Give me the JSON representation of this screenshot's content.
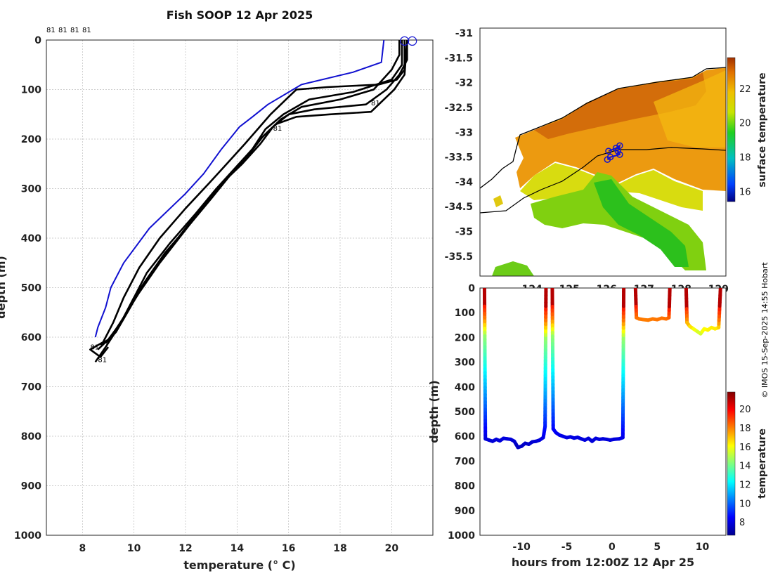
{
  "title": "Fish SOOP 12 Apr 2025",
  "credit": "© IMOS 15-Sep-2025 14:55 Hobart",
  "colors": {
    "latest_profile": "#1010d0",
    "profiles": "#000000",
    "coast": "#000000"
  },
  "icons": {
    "position_marker": "circle-marker",
    "track_marker": "circle-marker"
  },
  "chart_data": [
    {
      "name": "profiles",
      "type": "line",
      "xlabel": "temperature (° C)",
      "ylabel": "depth (m)",
      "xlim": [
        6.6,
        21.6
      ],
      "ylim": [
        1000,
        0
      ],
      "xticks": [
        8,
        10,
        12,
        14,
        16,
        18,
        20
      ],
      "yticks": [
        0,
        100,
        200,
        300,
        400,
        500,
        600,
        700,
        800,
        900,
        1000
      ],
      "grid": true,
      "top_labels": [
        "81",
        "81",
        "81",
        "81"
      ],
      "series": [
        {
          "name": "latest",
          "color": "#1010d0",
          "points": [
            [
              19.7,
              0
            ],
            [
              19.6,
              45
            ],
            [
              18.5,
              65
            ],
            [
              16.5,
              90
            ],
            [
              15.2,
              130
            ],
            [
              14.6,
              155
            ],
            [
              14.1,
              175
            ],
            [
              13.4,
              220
            ],
            [
              12.7,
              270
            ],
            [
              12.0,
              310
            ],
            [
              10.6,
              380
            ],
            [
              9.6,
              450
            ],
            [
              9.1,
              500
            ],
            [
              8.9,
              540
            ],
            [
              8.6,
              580
            ],
            [
              8.5,
              600
            ]
          ]
        },
        {
          "name": "profile-1",
          "color": "#000000",
          "points": [
            [
              20.5,
              0
            ],
            [
              20.5,
              60
            ],
            [
              20.2,
              80
            ],
            [
              19.5,
              90
            ],
            [
              17.5,
              95
            ],
            [
              16.3,
              100
            ],
            [
              15.9,
              120
            ],
            [
              15.3,
              150
            ],
            [
              14.8,
              180
            ],
            [
              14.3,
              210
            ],
            [
              13.6,
              250
            ],
            [
              12.9,
              290
            ],
            [
              12.0,
              340
            ],
            [
              11.0,
              400
            ],
            [
              10.2,
              460
            ],
            [
              9.6,
              520
            ],
            [
              9.2,
              570
            ],
            [
              8.8,
              610
            ],
            [
              8.3,
              625
            ],
            [
              8.7,
              640
            ],
            [
              9.0,
              620
            ]
          ]
        },
        {
          "name": "profile-2",
          "color": "#000000",
          "points": [
            [
              20.4,
              0
            ],
            [
              20.4,
              50
            ],
            [
              20.0,
              80
            ],
            [
              18.5,
              105
            ],
            [
              16.8,
              120
            ],
            [
              15.8,
              150
            ],
            [
              15.1,
              180
            ],
            [
              14.6,
              220
            ],
            [
              13.9,
              260
            ],
            [
              13.2,
              300
            ],
            [
              12.4,
              350
            ],
            [
              11.4,
              410
            ],
            [
              10.5,
              470
            ],
            [
              9.9,
              530
            ],
            [
              9.4,
              580
            ],
            [
              8.9,
              620
            ],
            [
              8.5,
              650
            ]
          ]
        },
        {
          "name": "profile-3",
          "color": "#000000",
          "points": [
            [
              20.6,
              0
            ],
            [
              20.6,
              40
            ],
            [
              20.3,
              70
            ],
            [
              19.8,
              100
            ],
            [
              19.0,
              130
            ],
            [
              17.0,
              140
            ],
            [
              16.0,
              150
            ],
            [
              15.4,
              175
            ],
            [
              14.9,
              210
            ],
            [
              14.2,
              250
            ],
            [
              13.4,
              290
            ],
            [
              12.6,
              340
            ],
            [
              11.7,
              400
            ],
            [
              10.8,
              460
            ],
            [
              10.0,
              520
            ],
            [
              9.5,
              570
            ],
            [
              9.0,
              605
            ],
            [
              8.7,
              615
            ]
          ]
        },
        {
          "name": "profile-4",
          "color": "#000000",
          "points": [
            [
              20.6,
              0
            ],
            [
              20.5,
              70
            ],
            [
              20.1,
              100
            ],
            [
              19.2,
              145
            ],
            [
              17.6,
              150
            ],
            [
              16.3,
              155
            ],
            [
              15.5,
              170
            ],
            [
              14.9,
              200
            ],
            [
              14.3,
              240
            ],
            [
              13.6,
              280
            ],
            [
              12.8,
              330
            ],
            [
              11.9,
              390
            ],
            [
              11.0,
              450
            ],
            [
              10.2,
              510
            ],
            [
              9.6,
              560
            ],
            [
              9.1,
              600
            ],
            [
              8.6,
              625
            ]
          ]
        },
        {
          "name": "profile-5",
          "color": "#000000",
          "points": [
            [
              20.3,
              0
            ],
            [
              20.3,
              30
            ],
            [
              20.0,
              60
            ],
            [
              19.3,
              100
            ],
            [
              18.0,
              120
            ],
            [
              16.5,
              135
            ],
            [
              15.7,
              160
            ],
            [
              15.0,
              195
            ],
            [
              14.4,
              235
            ],
            [
              13.7,
              275
            ],
            [
              13.0,
              320
            ],
            [
              12.2,
              370
            ],
            [
              11.2,
              430
            ],
            [
              10.4,
              490
            ],
            [
              9.8,
              545
            ],
            [
              9.3,
              590
            ],
            [
              8.9,
              612
            ]
          ]
        }
      ],
      "point_labels": [
        {
          "text": "81",
          "x": 19.2,
          "y": 132
        },
        {
          "text": "81",
          "x": 15.4,
          "y": 183
        },
        {
          "text": "81",
          "x": 8.3,
          "y": 625
        },
        {
          "text": "81",
          "x": 8.6,
          "y": 650
        }
      ]
    },
    {
      "name": "map",
      "type": "heatmap",
      "colorbar_label": "surface temperature",
      "colorbar_ticks": [
        16,
        18,
        20,
        22
      ],
      "clim": [
        15.4,
        23.8
      ],
      "xlim": [
        122.6,
        129.2
      ],
      "ylim": [
        -35.9,
        -30.9
      ],
      "xticks": [
        124,
        125,
        126,
        127,
        128,
        129
      ],
      "yticks": [
        -31,
        -31.5,
        -32,
        -32.5,
        -33,
        -33.5,
        -34,
        -34.5,
        -35,
        -35.5
      ],
      "track": [
        [
          126.05,
          -33.38
        ],
        [
          126.25,
          -33.32
        ],
        [
          126.35,
          -33.27
        ],
        [
          126.3,
          -33.38
        ],
        [
          126.35,
          -33.45
        ],
        [
          126.1,
          -33.5
        ],
        [
          126.02,
          -33.55
        ]
      ]
    },
    {
      "name": "timeseries",
      "type": "scatter",
      "xlabel": "hours from 12:00Z 12 Apr 25",
      "ylabel": "depth (m)",
      "xlim": [
        -14.6,
        12.6
      ],
      "ylim": [
        1000,
        0
      ],
      "xticks": [
        -10,
        -5,
        0,
        5,
        10
      ],
      "yticks": [
        0,
        100,
        200,
        300,
        400,
        500,
        600,
        700,
        800,
        900,
        1000
      ],
      "colorbar_label": "temperature",
      "colorbar_ticks": [
        8,
        10,
        12,
        14,
        16,
        18,
        20
      ],
      "clim": [
        6.6,
        21.8
      ],
      "dives": [
        {
          "t": [
            -14.1,
            -14.0,
            -13.6,
            -13.2,
            -12.8,
            -12.4,
            -12.0,
            -11.6,
            -11.2,
            -10.8,
            -10.4,
            -10.0,
            -9.6,
            -9.2,
            -8.8,
            -8.4,
            -8.0,
            -7.6,
            -7.4,
            -7.3
          ],
          "d": [
            0,
            610,
            615,
            620,
            612,
            618,
            608,
            610,
            612,
            620,
            645,
            640,
            628,
            632,
            622,
            620,
            615,
            605,
            560,
            0
          ]
        },
        {
          "t": [
            -6.6,
            -6.5,
            -6.2,
            -5.8,
            -5.4,
            -5.0,
            -4.6,
            -4.2,
            -3.8,
            -3.4,
            -3.0,
            -2.6,
            -2.2,
            -1.8,
            -1.4,
            -1.0,
            -0.6,
            -0.2,
            0.2,
            0.8,
            1.2,
            1.3
          ],
          "d": [
            0,
            570,
            585,
            595,
            600,
            605,
            602,
            607,
            604,
            610,
            615,
            608,
            620,
            608,
            612,
            610,
            612,
            615,
            612,
            610,
            605,
            0
          ]
        },
        {
          "t": [
            2.6,
            2.7,
            3.0,
            3.5,
            4.0,
            4.5,
            5.0,
            5.5,
            6.0,
            6.3,
            6.4
          ],
          "d": [
            0,
            120,
            125,
            128,
            130,
            125,
            128,
            122,
            125,
            120,
            0
          ]
        },
        {
          "t": [
            8.2,
            8.3,
            8.6,
            9.0,
            9.4,
            9.8,
            10.2,
            10.6,
            11.0,
            11.4,
            11.8,
            12.0
          ],
          "d": [
            0,
            140,
            155,
            165,
            175,
            185,
            165,
            170,
            160,
            165,
            160,
            0
          ]
        }
      ]
    }
  ]
}
